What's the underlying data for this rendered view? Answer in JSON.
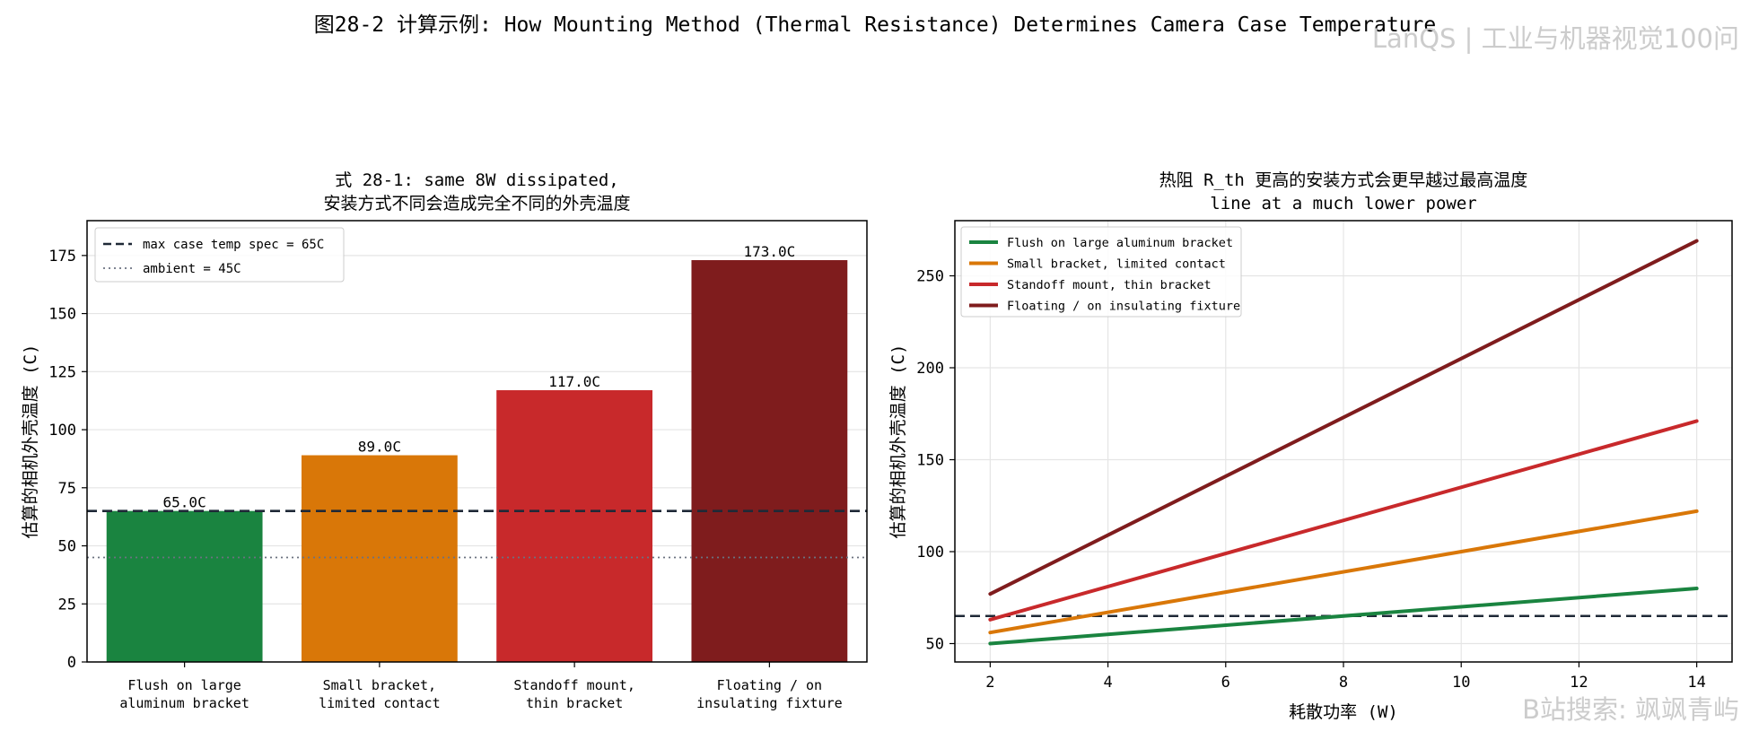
{
  "suptitle": "图28-2  计算示例: How Mounting Method (Thermal Resistance) Determines Camera Case Temperature",
  "watermark_top": "LanQS | 工业与机器视觉100问",
  "watermark_bottom": "B站搜索: 飒飒青屿",
  "colors": {
    "flush": "#1a8440",
    "small": "#d97708",
    "standoff": "#c8292b",
    "floating": "#7f1c1d",
    "spec_line": "#1f2937",
    "ambient_line": "#6b7280",
    "grid": "#e5e5e5"
  },
  "chart_data": [
    {
      "type": "bar",
      "title": [
        "式 28-1: same 8W dissipated,",
        "安装方式不同会造成完全不同的外壳温度"
      ],
      "xlabel": "",
      "ylabel": "估算的相机外壳温度 (C)",
      "ylim": [
        0,
        190
      ],
      "yticks": [
        0,
        25,
        50,
        75,
        100,
        125,
        150,
        175
      ],
      "categories": [
        [
          "Flush on large",
          "aluminum bracket"
        ],
        [
          "Small bracket,",
          "limited contact"
        ],
        [
          "Standoff mount,",
          "thin bracket"
        ],
        [
          "Floating / on",
          "insulating fixture"
        ]
      ],
      "values": [
        65.0,
        89.0,
        117.0,
        173.0
      ],
      "value_labels": [
        "65.0C",
        "89.0C",
        "117.0C",
        "173.0C"
      ],
      "bar_colors": [
        "flush",
        "small",
        "standoff",
        "floating"
      ],
      "reference_lines": [
        {
          "label": "max case temp spec = 65C",
          "y": 65,
          "style": "dashed",
          "color": "spec_line"
        },
        {
          "label": "ambient = 45C",
          "y": 45,
          "style": "dotted",
          "color": "ambient_line"
        }
      ],
      "legend": "top-left",
      "grid": "y"
    },
    {
      "type": "line",
      "title": [
        "热阻 R_th 更高的安装方式会更早越过最高温度",
        "line at a much lower power"
      ],
      "xlabel": "耗散功率 (W)",
      "ylabel": "估算的相机外壳温度 (C)",
      "xlim": [
        1.4,
        14.6
      ],
      "ylim": [
        40,
        280
      ],
      "xticks": [
        2,
        4,
        6,
        8,
        10,
        12,
        14
      ],
      "yticks": [
        50,
        100,
        150,
        200,
        250
      ],
      "series": [
        {
          "name": "Flush on large aluminum bracket",
          "color": "flush",
          "x": [
            2,
            14
          ],
          "y": [
            50.0,
            80.0
          ]
        },
        {
          "name": "Small bracket, limited contact",
          "color": "small",
          "x": [
            2,
            14
          ],
          "y": [
            56.0,
            122.0
          ]
        },
        {
          "name": "Standoff mount, thin bracket",
          "color": "standoff",
          "x": [
            2,
            14
          ],
          "y": [
            63.0,
            171.0
          ]
        },
        {
          "name": "Floating / on insulating fixture",
          "color": "floating",
          "x": [
            2,
            14
          ],
          "y": [
            77.0,
            269.0
          ]
        }
      ],
      "reference_lines": [
        {
          "y": 65,
          "style": "dashed",
          "color": "spec_line"
        }
      ],
      "legend": "top-left",
      "grid": "both"
    }
  ]
}
